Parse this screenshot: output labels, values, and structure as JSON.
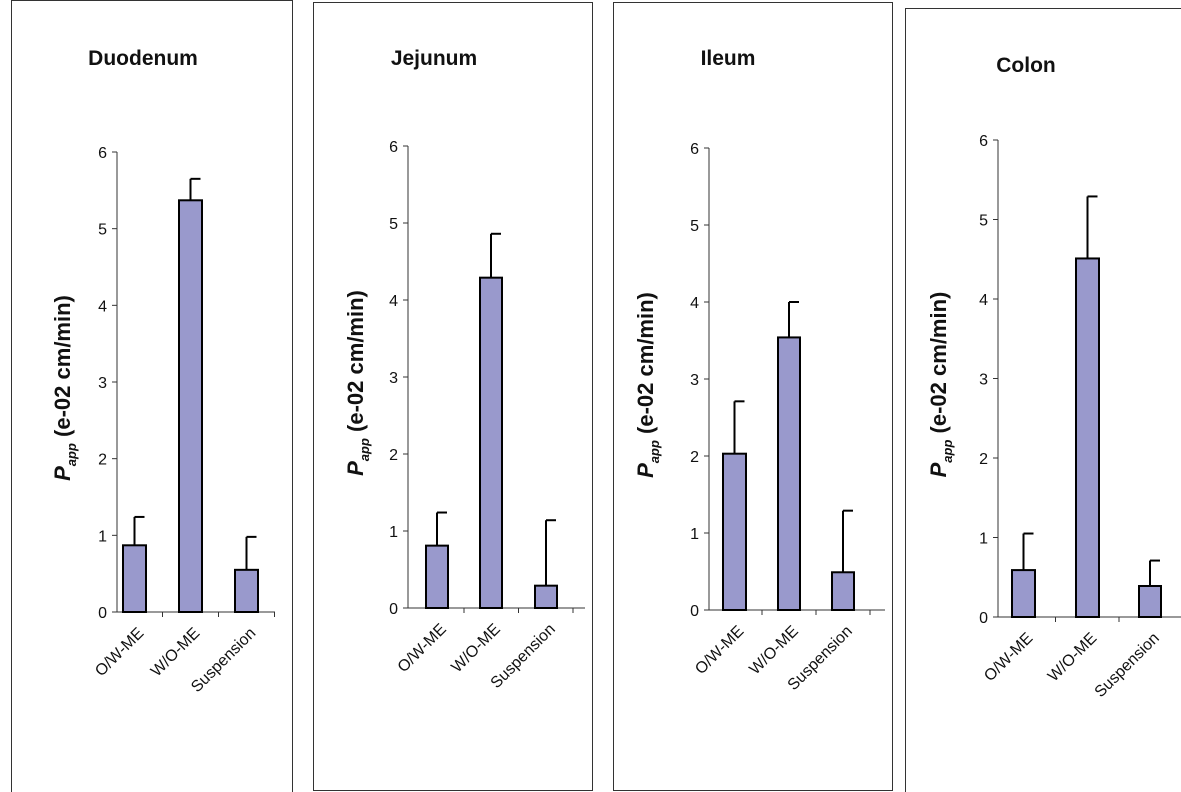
{
  "chart_data": [
    {
      "type": "bar",
      "title": "Duodenum",
      "categories": [
        "O/W-ME",
        "W/O-ME",
        "Suspension"
      ],
      "values": [
        0.87,
        5.37,
        0.55
      ],
      "error": [
        0.37,
        0.28,
        0.43
      ],
      "ylabel_symbol": "P",
      "ylabel_sub": "app",
      "ylabel_unit": " (e-02 cm/min)",
      "ylim": [
        0,
        6
      ],
      "yticks": [
        "0",
        "1",
        "2",
        "3",
        "4",
        "5",
        "6"
      ],
      "bar_color": "#9999cc",
      "grid": false
    },
    {
      "type": "bar",
      "title": "Jejunum",
      "categories": [
        "O/W-ME",
        "W/O-ME",
        "Suspension"
      ],
      "values": [
        0.81,
        4.29,
        0.29
      ],
      "error": [
        0.43,
        0.57,
        0.85
      ],
      "ylabel_symbol": "P",
      "ylabel_sub": "app",
      "ylabel_unit": " (e-02 cm/min)",
      "ylim": [
        0,
        6
      ],
      "yticks": [
        "0",
        "1",
        "2",
        "3",
        "4",
        "5",
        "6"
      ],
      "bar_color": "#9999cc",
      "grid": false
    },
    {
      "type": "bar",
      "title": "Ileum",
      "categories": [
        "O/W-ME",
        "W/O-ME",
        "Suspension"
      ],
      "values": [
        2.03,
        3.54,
        0.49
      ],
      "error": [
        0.68,
        0.46,
        0.8
      ],
      "ylabel_symbol": "P",
      "ylabel_sub": "app",
      "ylabel_unit": " (e-02 cm/min)",
      "ylim": [
        0,
        6
      ],
      "yticks": [
        "0",
        "1",
        "2",
        "3",
        "4",
        "5",
        "6"
      ],
      "bar_color": "#9999cc",
      "grid": false
    },
    {
      "type": "bar",
      "title": "Colon",
      "categories": [
        "O/W-ME",
        "W/O-ME",
        "Suspension"
      ],
      "values": [
        0.59,
        4.51,
        0.39
      ],
      "error": [
        0.46,
        0.78,
        0.32
      ],
      "ylabel_symbol": "P",
      "ylabel_sub": "app",
      "ylabel_unit": " (e-02 cm/min)",
      "ylim": [
        0,
        6
      ],
      "yticks": [
        "0",
        "1",
        "2",
        "3",
        "4",
        "5",
        "6"
      ],
      "bar_color": "#9999cc",
      "grid": false
    }
  ]
}
